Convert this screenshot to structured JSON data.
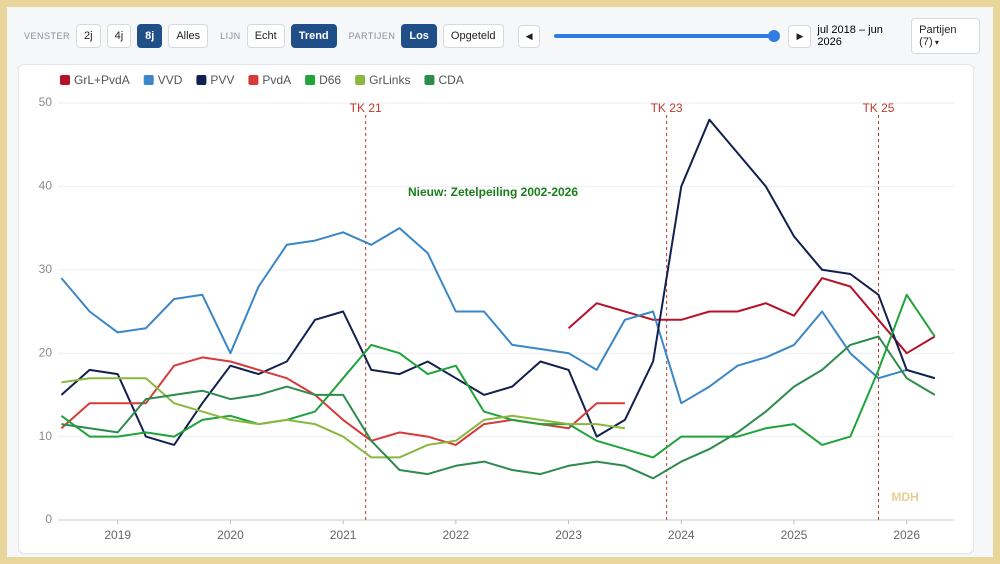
{
  "controls": {
    "groups": [
      {
        "label": "VENSTER",
        "buttons": [
          {
            "label": "2j",
            "active": false
          },
          {
            "label": "4j",
            "active": false
          },
          {
            "label": "8j",
            "active": true
          },
          {
            "label": "Alles",
            "active": false
          }
        ]
      },
      {
        "label": "LIJN",
        "buttons": [
          {
            "label": "Echt",
            "active": false
          },
          {
            "label": "Trend",
            "active": true
          }
        ]
      },
      {
        "label": "PARTIJEN",
        "buttons": [
          {
            "label": "Los",
            "active": true
          },
          {
            "label": "Opgeteld",
            "active": false
          }
        ]
      }
    ],
    "range_label": "jul 2018 – jun 2026",
    "parties_button": "Partijen (7)"
  },
  "chart_data": {
    "type": "line",
    "title": "Nieuw: Zetelpeiling 2002-2026",
    "watermark": "MDH",
    "x": [
      2018.5,
      2018.75,
      2019,
      2019.25,
      2019.5,
      2019.75,
      2020,
      2020.25,
      2020.5,
      2020.75,
      2021,
      2021.25,
      2021.5,
      2021.75,
      2022,
      2022.25,
      2022.5,
      2022.75,
      2023,
      2023.25,
      2023.5,
      2023.75,
      2024,
      2024.25,
      2024.5,
      2024.75,
      2025,
      2025.25,
      2025.5,
      2025.75,
      2026,
      2026.25
    ],
    "xlim": [
      2018.47,
      2026.42
    ],
    "xticks": [
      2019,
      2020,
      2021,
      2022,
      2023,
      2024,
      2025,
      2026
    ],
    "ylim": [
      0,
      50
    ],
    "yticks": [
      0,
      10,
      20,
      30,
      40,
      50
    ],
    "grid": true,
    "annotations": [
      {
        "label": "TK 21",
        "x": 2021.2
      },
      {
        "label": "TK 23",
        "x": 2023.87
      },
      {
        "label": "TK 25",
        "x": 2025.75
      }
    ],
    "series": [
      {
        "name": "GrL+PvdA",
        "color": "#b5122a",
        "values": [
          null,
          null,
          null,
          null,
          null,
          null,
          null,
          null,
          null,
          null,
          null,
          null,
          null,
          null,
          null,
          null,
          null,
          null,
          23,
          26,
          25,
          24,
          24,
          25,
          25,
          26,
          24.5,
          29,
          28,
          24,
          20,
          22
        ]
      },
      {
        "name": "VVD",
        "color": "#3a86c8",
        "values": [
          29,
          25,
          22.5,
          23,
          26.5,
          27,
          20,
          28,
          33,
          33.5,
          34.5,
          33,
          35,
          32,
          25,
          25,
          21,
          20.5,
          20,
          18,
          24,
          25,
          14,
          16,
          18.5,
          19.5,
          21,
          25,
          20,
          17,
          18,
          17
        ]
      },
      {
        "name": "PVV",
        "color": "#12204f",
        "values": [
          15,
          18,
          17.5,
          10,
          9,
          14,
          18.5,
          17.5,
          19,
          24,
          25,
          18,
          17.5,
          19,
          17,
          15,
          16,
          19,
          18,
          10,
          12,
          19,
          40,
          48,
          44,
          40,
          34,
          30,
          29.5,
          27,
          18,
          17
        ]
      },
      {
        "name": "PvdA",
        "color": "#d63a3a",
        "values": [
          11,
          14,
          14,
          14,
          18.5,
          19.5,
          19,
          18,
          17,
          15,
          12,
          9.5,
          10.5,
          10,
          9,
          11.5,
          12,
          11.5,
          11,
          14,
          14,
          null,
          null,
          null,
          null,
          null,
          null,
          null,
          null,
          null,
          null,
          null
        ]
      },
      {
        "name": "D66",
        "color": "#1fa33a",
        "values": [
          12.5,
          10,
          10,
          10.5,
          10,
          12,
          12.5,
          11.5,
          12,
          13,
          17,
          21,
          20,
          17.5,
          18.5,
          13,
          12,
          11.5,
          11.5,
          9.5,
          8.5,
          7.5,
          10,
          10,
          10,
          11,
          11.5,
          9,
          10,
          18,
          27,
          22
        ]
      },
      {
        "name": "GrLinks",
        "color": "#8ab83e",
        "values": [
          16.5,
          17,
          17,
          17,
          14,
          13,
          12,
          11.5,
          12,
          11.5,
          10,
          7.5,
          7.5,
          9,
          9.5,
          12,
          12.5,
          12,
          11.5,
          11.5,
          11,
          null,
          null,
          null,
          null,
          null,
          null,
          null,
          null,
          null,
          null,
          null
        ]
      },
      {
        "name": "CDA",
        "color": "#2e8b4e",
        "values": [
          11.5,
          11,
          10.5,
          14.5,
          15,
          15.5,
          14.5,
          15,
          16,
          15,
          15,
          9.5,
          6,
          5.5,
          6.5,
          7,
          6,
          5.5,
          6.5,
          7,
          6.5,
          5,
          7,
          8.5,
          10.5,
          13,
          16,
          18,
          21,
          22,
          17,
          15
        ]
      }
    ]
  }
}
